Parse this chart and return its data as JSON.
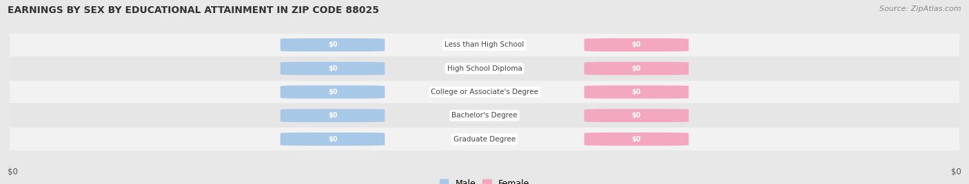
{
  "title": "EARNINGS BY SEX BY EDUCATIONAL ATTAINMENT IN ZIP CODE 88025",
  "source": "Source: ZipAtlas.com",
  "categories": [
    "Less than High School",
    "High School Diploma",
    "College or Associate's Degree",
    "Bachelor's Degree",
    "Graduate Degree"
  ],
  "male_values": [
    0,
    0,
    0,
    0,
    0
  ],
  "female_values": [
    0,
    0,
    0,
    0,
    0
  ],
  "male_color": "#a8c8e8",
  "female_color": "#f4a8c0",
  "label_text_color": "#ffffff",
  "category_text_color": "#444444",
  "background_color": "#e8e8e8",
  "row_bg_odd": "#f0f0f0",
  "row_bg_even": "#e0e0e0",
  "xlabel_left": "$0",
  "xlabel_right": "$0",
  "legend_male": "Male",
  "legend_female": "Female",
  "title_fontsize": 10,
  "source_fontsize": 8,
  "figsize": [
    14.06,
    2.68
  ],
  "dpi": 100
}
